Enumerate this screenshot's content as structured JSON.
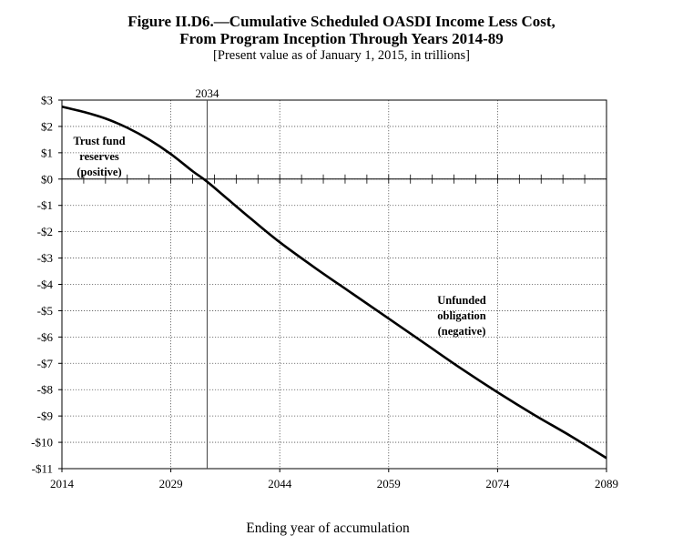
{
  "chart_data": {
    "type": "line",
    "title": "Figure II.D6.—Cumulative Scheduled OASDI Income Less Cost,",
    "title_line2": "From Program Inception Through Years 2014-89",
    "subtitle": "[Present value as of January 1, 2015, in trillions]",
    "xlabel": "Ending year of accumulation",
    "ylabel": "",
    "xlim": [
      2014,
      2089
    ],
    "ylim": [
      -11,
      3
    ],
    "x_ticks": [
      2014,
      2029,
      2044,
      2059,
      2074,
      2089
    ],
    "y_ticks": [
      3,
      2,
      1,
      0,
      -1,
      -2,
      -3,
      -4,
      -5,
      -6,
      -7,
      -8,
      -9,
      -10,
      -11
    ],
    "y_tick_labels": [
      "$3",
      "$2",
      "$1",
      "$0",
      "-$1",
      "-$2",
      "-$3",
      "-$4",
      "-$5",
      "-$6",
      "-$7",
      "-$8",
      "-$9",
      "-$10",
      "-$11"
    ],
    "grid": true,
    "series": [
      {
        "x": [
          2014,
          2017,
          2020,
          2023,
          2026,
          2029,
          2032,
          2034,
          2037,
          2040,
          2044,
          2049,
          2054,
          2059,
          2064,
          2069,
          2074,
          2079,
          2084,
          2089
        ],
        "y": [
          2.75,
          2.55,
          2.3,
          1.95,
          1.5,
          0.95,
          0.3,
          -0.1,
          -0.8,
          -1.5,
          -2.4,
          -3.4,
          -4.35,
          -5.3,
          -6.25,
          -7.2,
          -8.1,
          -8.95,
          -9.75,
          -10.6
        ]
      }
    ],
    "annotations": [
      {
        "lines": [
          "Trust fund",
          "reserves",
          "(positive)"
        ]
      },
      {
        "lines": [
          "Unfunded",
          "obligation",
          "(negative)"
        ]
      }
    ],
    "reference_line": {
      "x": 2034,
      "label": "2034"
    }
  }
}
